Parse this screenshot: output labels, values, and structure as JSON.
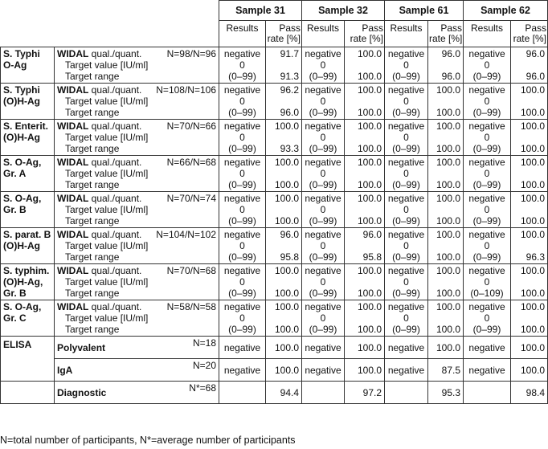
{
  "samples": [
    "Sample 31",
    "Sample 32",
    "Sample 61",
    "Sample 62"
  ],
  "subheaders": {
    "results": "Results",
    "pass_line1": "Pass",
    "pass_line2": "rate [%]"
  },
  "labels": {
    "method": "WIDAL",
    "method_suffix": " qual./quant.",
    "target_value": "Target value [IU/ml]",
    "target_range": "Target range"
  },
  "widal_groups": [
    {
      "name": [
        "S. Typhi",
        "O-Ag"
      ],
      "n": "N=98/N=96",
      "cells": [
        {
          "result": "negative",
          "target": "0",
          "range": "(0–99)",
          "pass": "91.7",
          "pass2": "91.3"
        },
        {
          "result": "negative",
          "target": "0",
          "range": "(0–99)",
          "pass": "100.0",
          "pass2": "100.0"
        },
        {
          "result": "negative",
          "target": "0",
          "range": "(0–99)",
          "pass": "96.0",
          "pass2": "96.0"
        },
        {
          "result": "negative",
          "target": "0",
          "range": "(0–99)",
          "pass": "96.0",
          "pass2": "96.0"
        }
      ]
    },
    {
      "name": [
        "S. Typhi",
        "(O)H-Ag"
      ],
      "n": "N=108/N=106",
      "cells": [
        {
          "result": "negative",
          "target": "0",
          "range": "(0–99)",
          "pass": "96.2",
          "pass2": "96.0"
        },
        {
          "result": "negative",
          "target": "0",
          "range": "(0–99)",
          "pass": "100.0",
          "pass2": "100.0"
        },
        {
          "result": "negative",
          "target": "0",
          "range": "(0–99)",
          "pass": "100.0",
          "pass2": "100.0"
        },
        {
          "result": "negative",
          "target": "0",
          "range": "(0–99)",
          "pass": "100.0",
          "pass2": "100.0"
        }
      ]
    },
    {
      "name": [
        "S. Enterit.",
        "(O)H-Ag"
      ],
      "n": "N=70/N=66",
      "cells": [
        {
          "result": "negative",
          "target": "0",
          "range": "(0–99)",
          "pass": "100.0",
          "pass2": "93.3"
        },
        {
          "result": "negative",
          "target": "0",
          "range": "(0–99)",
          "pass": "100.0",
          "pass2": "100.0"
        },
        {
          "result": "negative",
          "target": "0",
          "range": "(0–99)",
          "pass": "100.0",
          "pass2": "100.0"
        },
        {
          "result": "negative",
          "target": "0",
          "range": "(0–99)",
          "pass": "100.0",
          "pass2": "100.0"
        }
      ]
    },
    {
      "name": [
        "S. O-Ag,",
        "Gr. A"
      ],
      "n": "N=66/N=68",
      "cells": [
        {
          "result": "negative",
          "target": "0",
          "range": "(0–99)",
          "pass": "100.0",
          "pass2": "100.0"
        },
        {
          "result": "negative",
          "target": "0",
          "range": "(0–99)",
          "pass": "100.0",
          "pass2": "100.0"
        },
        {
          "result": "negative",
          "target": "0",
          "range": "(0–99)",
          "pass": "100.0",
          "pass2": "100.0"
        },
        {
          "result": "negative",
          "target": "0",
          "range": "(0–99)",
          "pass": "100.0",
          "pass2": "100.0"
        }
      ]
    },
    {
      "name": [
        "S. O-Ag,",
        "Gr. B"
      ],
      "n": "N=70/N=74",
      "cells": [
        {
          "result": "negative",
          "target": "0",
          "range": "(0–99)",
          "pass": "100.0",
          "pass2": "100.0"
        },
        {
          "result": "negative",
          "target": "0",
          "range": "(0–99)",
          "pass": "100.0",
          "pass2": "100.0"
        },
        {
          "result": "negative",
          "target": "0",
          "range": "(0–99)",
          "pass": "100.0",
          "pass2": "100.0"
        },
        {
          "result": "negative",
          "target": "0",
          "range": "(0–99)",
          "pass": "100.0",
          "pass2": "100.0"
        }
      ]
    },
    {
      "name": [
        "S. parat. B",
        "(O)H-Ag"
      ],
      "n": "N=104/N=102",
      "cells": [
        {
          "result": "negative",
          "target": "0",
          "range": "(0–99)",
          "pass": "96.0",
          "pass2": "95.8"
        },
        {
          "result": "negative",
          "target": "0",
          "range": "(0–99)",
          "pass": "96.0",
          "pass2": "95.8"
        },
        {
          "result": "negative",
          "target": "0",
          "range": "(0–99)",
          "pass": "100.0",
          "pass2": "100.0"
        },
        {
          "result": "negative",
          "target": "0",
          "range": "(0–99)",
          "pass": "100.0",
          "pass2": "96.3"
        }
      ]
    },
    {
      "name": [
        "S. typhim.",
        "(O)H-Ag,",
        "Gr. B"
      ],
      "n": "N=70/N=68",
      "cells": [
        {
          "result": "negative",
          "target": "0",
          "range": "(0–99)",
          "pass": "100.0",
          "pass2": "100.0"
        },
        {
          "result": "negative",
          "target": "0",
          "range": "(0–99)",
          "pass": "100.0",
          "pass2": "100.0"
        },
        {
          "result": "negative",
          "target": "0",
          "range": "(0–99)",
          "pass": "100.0",
          "pass2": "100.0"
        },
        {
          "result": "negative",
          "target": "0",
          "range": "(0–109)",
          "pass": "100.0",
          "pass2": "100.0"
        }
      ]
    },
    {
      "name": [
        "S. O-Ag,",
        "Gr. C"
      ],
      "n": "N=58/N=58",
      "cells": [
        {
          "result": "negative",
          "target": "0",
          "range": "(0–99)",
          "pass": "100.0",
          "pass2": "100.0"
        },
        {
          "result": "negative",
          "target": "0",
          "range": "(0–99)",
          "pass": "100.0",
          "pass2": "100.0"
        },
        {
          "result": "negative",
          "target": "0",
          "range": "(0–99)",
          "pass": "100.0",
          "pass2": "100.0"
        },
        {
          "result": "negative",
          "target": "0",
          "range": "(0–99)",
          "pass": "100.0",
          "pass2": "100.0"
        }
      ]
    }
  ],
  "elisa": {
    "name": "ELISA",
    "rows": [
      {
        "label": "Polyvalent",
        "n": "N=18",
        "cells": [
          {
            "result": "negative",
            "pass": "100.0"
          },
          {
            "result": "negative",
            "pass": "100.0"
          },
          {
            "result": "negative",
            "pass": "100.0"
          },
          {
            "result": "negative",
            "pass": "100.0"
          }
        ]
      },
      {
        "label": "IgA",
        "n": "N=20",
        "cells": [
          {
            "result": "negative",
            "pass": "100.0"
          },
          {
            "result": "negative",
            "pass": "100.0"
          },
          {
            "result": "negative",
            "pass": "87.5"
          },
          {
            "result": "negative",
            "pass": "100.0"
          }
        ]
      }
    ]
  },
  "diagnostic": {
    "label": "Diagnostic",
    "n": "N*=68",
    "cells": [
      {
        "result": "",
        "pass": "94.4"
      },
      {
        "result": "",
        "pass": "97.2"
      },
      {
        "result": "",
        "pass": "95.3"
      },
      {
        "result": "",
        "pass": "98.4"
      }
    ]
  },
  "footnote": "N=total number of participants, N*=average number of participants"
}
